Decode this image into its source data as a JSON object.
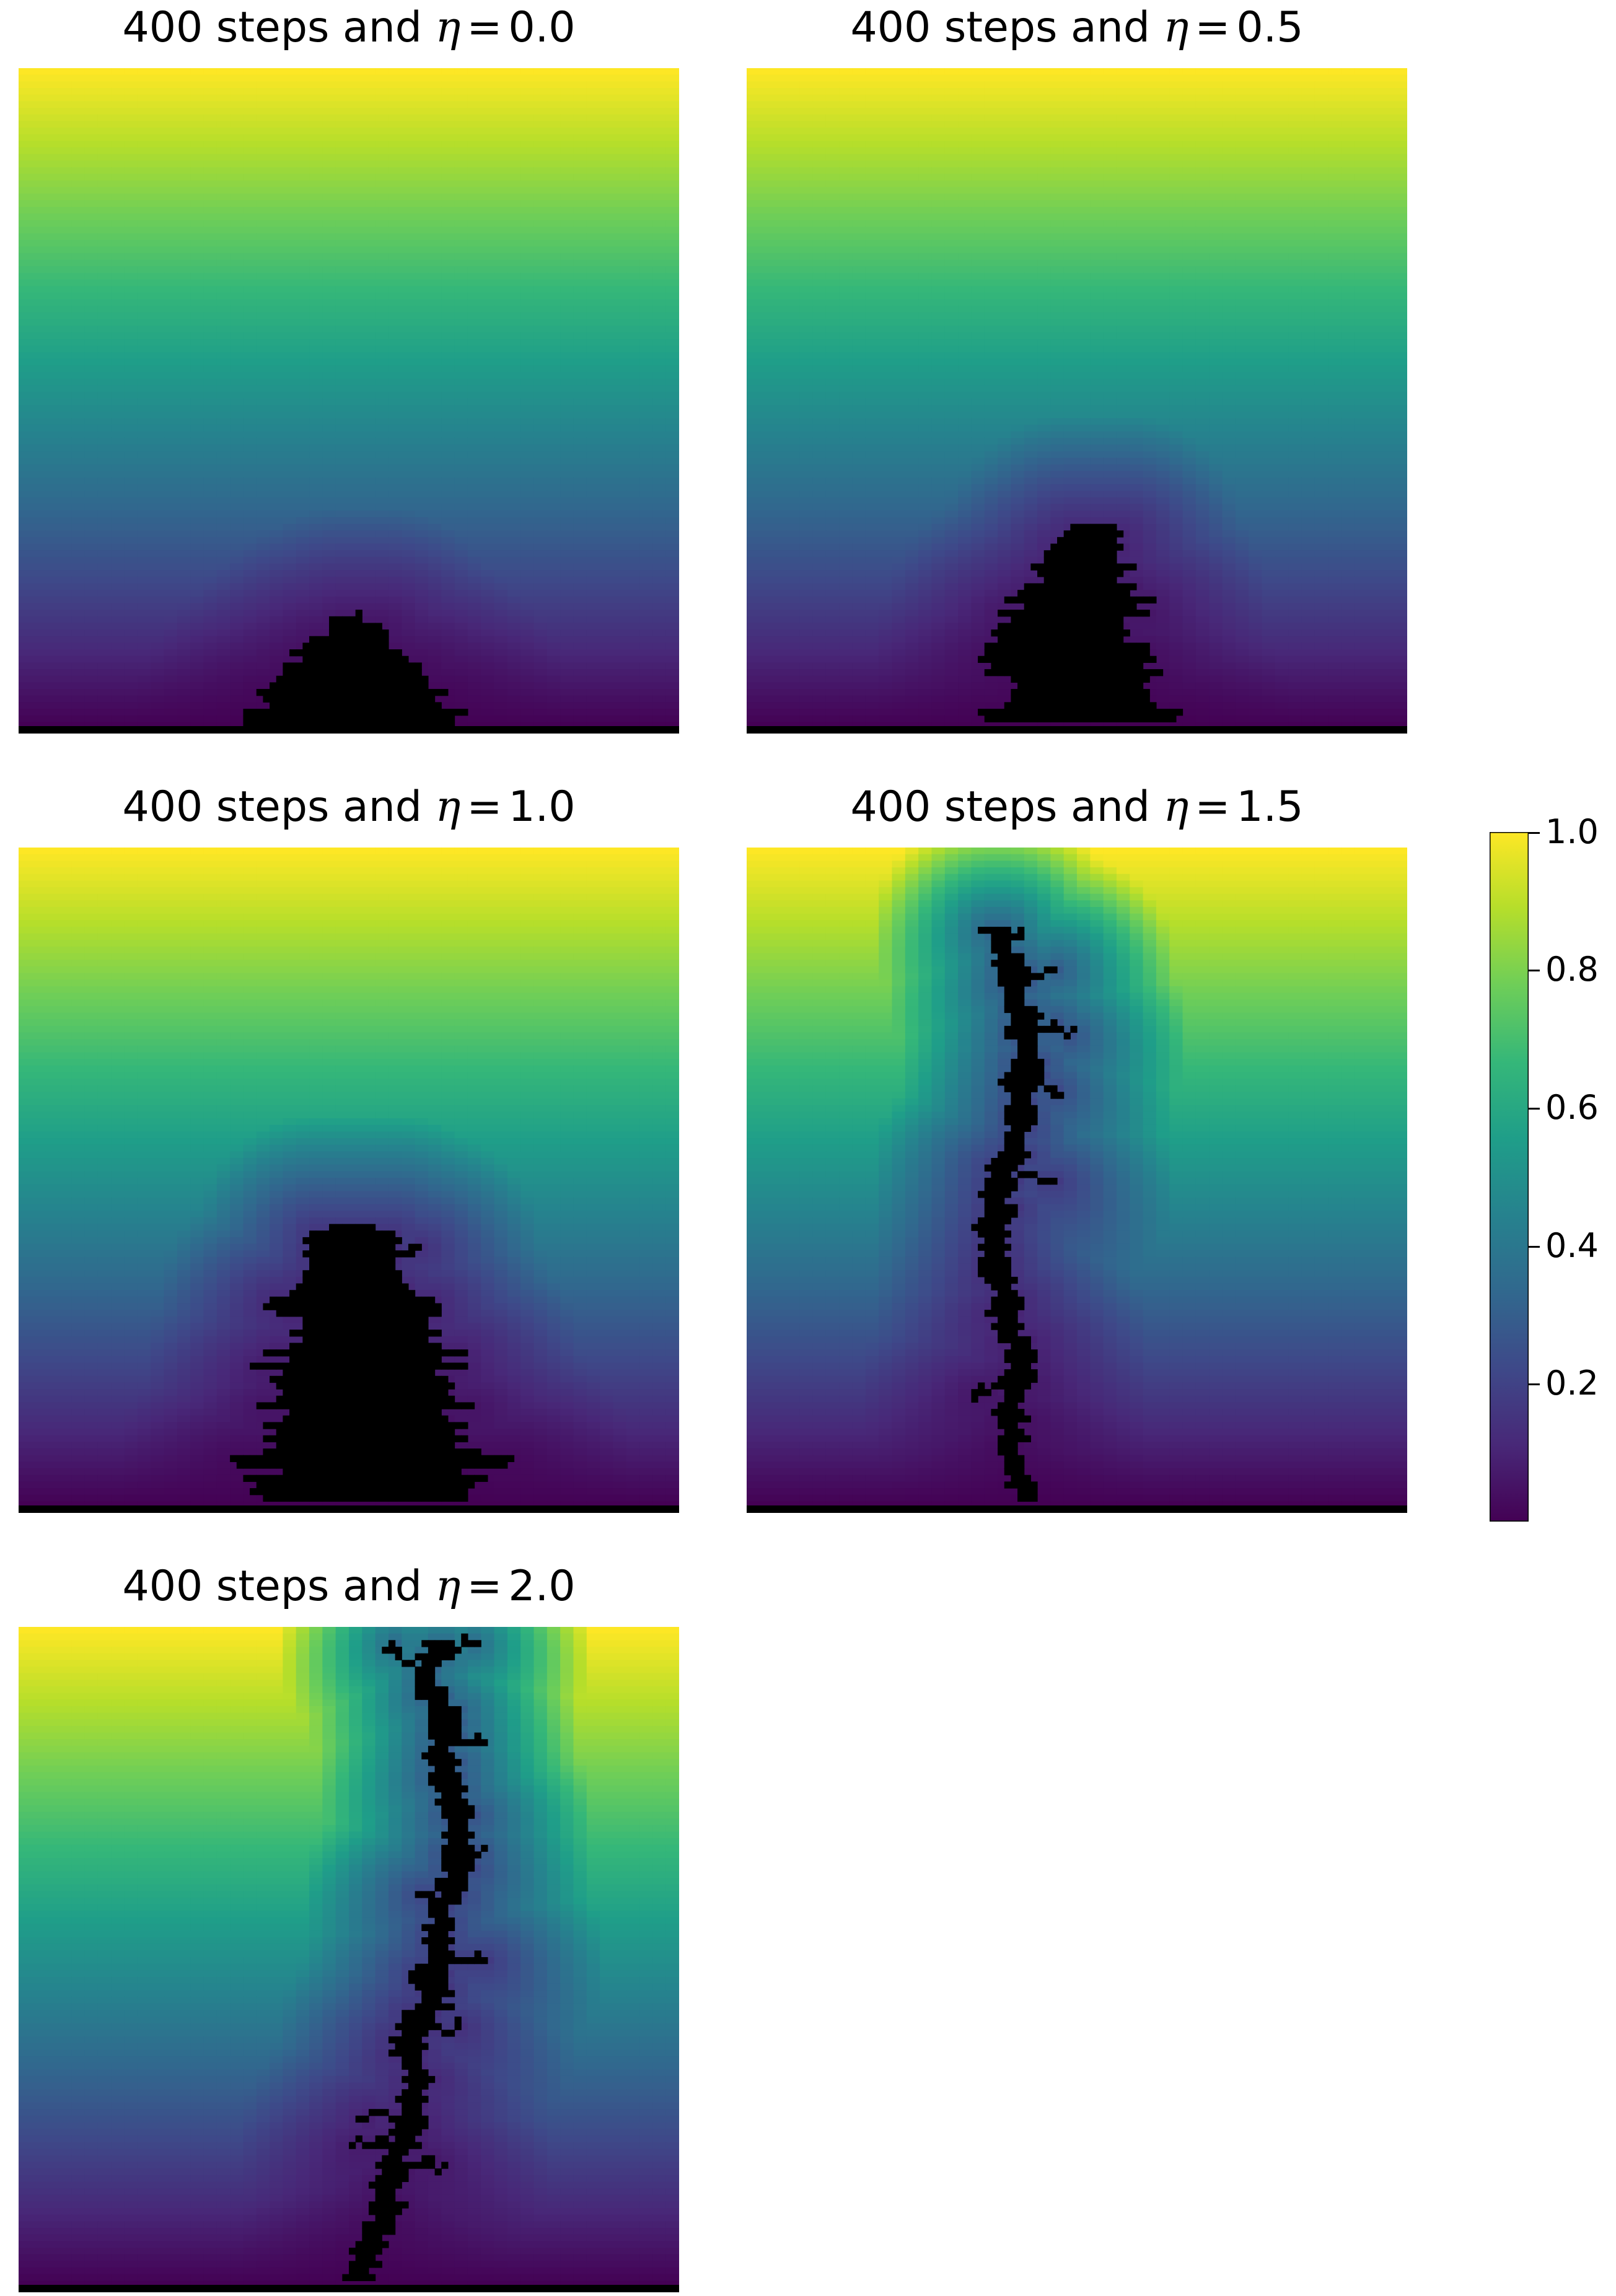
{
  "figure": {
    "panels": [
      {
        "title_prefix": "400 steps and ",
        "eta_symbol": "η",
        "eq": "=",
        "eta_value": "0.0"
      },
      {
        "title_prefix": "400 steps and ",
        "eta_symbol": "η",
        "eq": "=",
        "eta_value": "0.5"
      },
      {
        "title_prefix": "400 steps and ",
        "eta_symbol": "η",
        "eq": "=",
        "eta_value": "1.0"
      },
      {
        "title_prefix": "400 steps and ",
        "eta_symbol": "η",
        "eq": "=",
        "eta_value": "1.5"
      },
      {
        "title_prefix": "400 steps and ",
        "eta_symbol": "η",
        "eq": "=",
        "eta_value": "2.0"
      }
    ],
    "colorbar": {
      "ticks": [
        "1.0",
        "0.8",
        "0.6",
        "0.4",
        "0.2"
      ],
      "min": 0.0,
      "max": 1.0,
      "colormap": "viridis"
    }
  },
  "chart_data": [
    {
      "type": "heatmap",
      "title": "400 steps and η = 0.0",
      "eta": 0.0,
      "steps": 400,
      "colormap": "viridis",
      "vmin": 0.0,
      "vmax": 1.0,
      "cluster_shape": "compact dense mound at bottom center"
    },
    {
      "type": "heatmap",
      "title": "400 steps and η = 0.5",
      "eta": 0.5,
      "steps": 400,
      "colormap": "viridis",
      "vmin": 0.0,
      "vmax": 1.0,
      "cluster_shape": "bushy cluster at bottom center"
    },
    {
      "type": "heatmap",
      "title": "400 steps and η = 1.0",
      "eta": 1.0,
      "steps": 400,
      "colormap": "viridis",
      "vmin": 0.0,
      "vmax": 1.0,
      "cluster_shape": "branched cluster rising to mid height"
    },
    {
      "type": "heatmap",
      "title": "400 steps and η = 1.5",
      "eta": 1.5,
      "steps": 400,
      "colormap": "viridis",
      "vmin": 0.0,
      "vmax": 1.0,
      "cluster_shape": "thin branched column reaching near top"
    },
    {
      "type": "heatmap",
      "title": "400 steps and η = 2.0",
      "eta": 2.0,
      "steps": 400,
      "colormap": "viridis",
      "vmin": 0.0,
      "vmax": 1.0,
      "cluster_shape": "thin branched column reaching the top"
    }
  ],
  "colors": {
    "viridis_stops": [
      "#440154",
      "#482878",
      "#3e4989",
      "#31688e",
      "#26828e",
      "#1f9e89",
      "#35b779",
      "#6ece58",
      "#b5de2b",
      "#fde725"
    ],
    "cluster": "#000000"
  }
}
